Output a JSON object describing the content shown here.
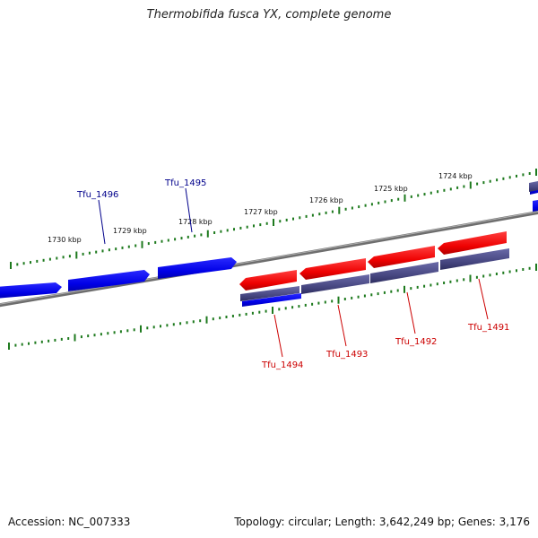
{
  "title": "Thermobifida fusca YX, complete genome",
  "footer": {
    "accession": "Accession: NC_007333",
    "summary": "Topology: circular; Length: 3,642,249 bp; Genes: 3,176"
  },
  "colors": {
    "background": "#ffffff",
    "backbone": "#808080",
    "forward_gene": "#0000ee",
    "reverse_gene": "#ee0000",
    "feature_purple": "#4d4d8a",
    "tick": "#1e7a1e",
    "gene_label_blue": "#00008b",
    "gene_label_red": "#cc0000"
  },
  "scale_labels": [
    "1730 kbp",
    "1729 kbp",
    "1728 kbp",
    "1727 kbp",
    "1726 kbp",
    "1725 kbp",
    "1724 kbp"
  ],
  "genes": [
    {
      "name": "Tfu_1496",
      "strand": "forward"
    },
    {
      "name": "Tfu_1495",
      "strand": "forward"
    },
    {
      "name": "Tfu_1494",
      "strand": "reverse"
    },
    {
      "name": "Tfu_1493",
      "strand": "reverse"
    },
    {
      "name": "Tfu_1492",
      "strand": "reverse"
    },
    {
      "name": "Tfu_1491",
      "strand": "reverse"
    }
  ]
}
